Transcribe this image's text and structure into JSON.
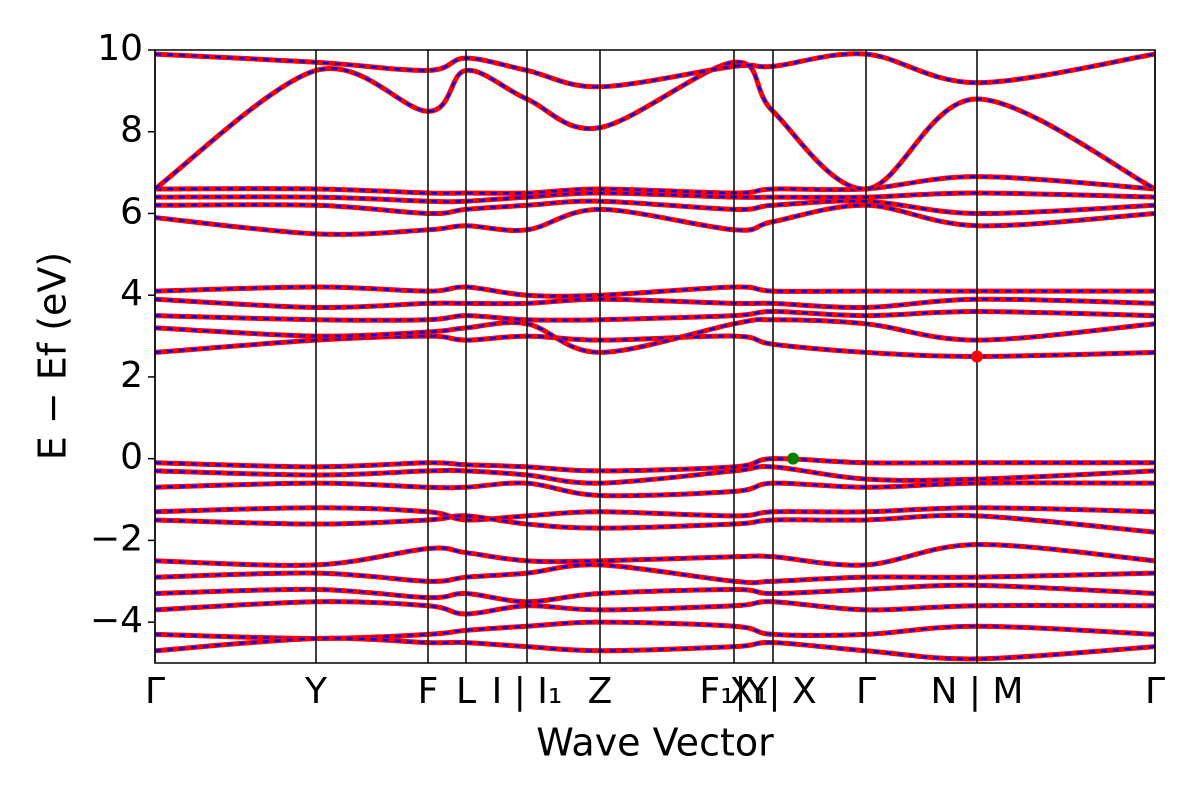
{
  "chart_data": {
    "type": "band",
    "x_label": "Wave Vector",
    "y_label": "E − Ef (eV)",
    "xlim": [
      0,
      1000
    ],
    "ylim": [
      -5,
      10
    ],
    "yticks": [
      {
        "value": -4,
        "label": "−4"
      },
      {
        "value": -2,
        "label": "−2"
      },
      0,
      2,
      4,
      6,
      8,
      10
    ],
    "xticks": [
      {
        "value": 0,
        "label": "Γ"
      },
      {
        "value": 161,
        "label": "Y"
      },
      {
        "value": 273,
        "label": "F"
      },
      {
        "value": 311,
        "label": "L"
      },
      {
        "value": 372,
        "label": "I | I₁"
      },
      {
        "value": 445,
        "label": "Z"
      },
      {
        "value": 579,
        "label": "F₁|Y"
      },
      {
        "value": 618,
        "label": "X₁| X"
      },
      {
        "value": 711,
        "label": "Γ"
      },
      {
        "value": 822,
        "label": "N | M"
      },
      {
        "value": 1000,
        "label": "Γ"
      }
    ],
    "color": "#ff0000",
    "dash_color": "#0000ff",
    "x": [
      0,
      161,
      273,
      311,
      372,
      445,
      579,
      618,
      711,
      822,
      1000
    ],
    "series": [
      {
        "values": [
          -0.1,
          -0.2,
          -0.1,
          -0.15,
          -0.2,
          -0.3,
          -0.2,
          0,
          -0.1,
          -0.1,
          -0.1
        ]
      },
      {
        "values": [
          -0.3,
          -0.4,
          -0.3,
          -0.3,
          -0.4,
          -0.6,
          -0.3,
          -0.2,
          -0.5,
          -0.5,
          -0.3
        ]
      },
      {
        "values": [
          -0.7,
          -0.6,
          -0.7,
          -0.7,
          -0.6,
          -0.9,
          -0.8,
          -0.6,
          -0.7,
          -0.6,
          -0.6
        ]
      },
      {
        "values": [
          -1.3,
          -1.2,
          -1.3,
          -1.5,
          -1.4,
          -1.3,
          -1.4,
          -1.3,
          -1.3,
          -1.2,
          -1.3
        ]
      },
      {
        "values": [
          -1.5,
          -1.6,
          -1.5,
          -1.4,
          -1.6,
          -1.7,
          -1.6,
          -1.5,
          -1.5,
          -1.4,
          -1.8
        ]
      },
      {
        "values": [
          -2.5,
          -2.6,
          -2.2,
          -2.3,
          -2.5,
          -2.5,
          -2.4,
          -2.4,
          -2.6,
          -2.1,
          -2.5
        ]
      },
      {
        "values": [
          -2.9,
          -2.8,
          -3.0,
          -2.9,
          -2.8,
          -2.6,
          -3.0,
          -3.0,
          -2.9,
          -2.9,
          -2.8
        ]
      },
      {
        "values": [
          -3.3,
          -3.2,
          -3.4,
          -3.3,
          -3.5,
          -3.3,
          -3.2,
          -3.3,
          -3.2,
          -3.1,
          -3.3
        ]
      },
      {
        "values": [
          -3.7,
          -3.5,
          -3.6,
          -3.8,
          -3.6,
          -3.7,
          -3.6,
          -3.5,
          -3.7,
          -3.6,
          -3.6
        ]
      },
      {
        "values": [
          -4.3,
          -4.4,
          -4.3,
          -4.2,
          -4.1,
          -4.0,
          -4.1,
          -4.3,
          -4.3,
          -4.1,
          -4.3
        ]
      },
      {
        "values": [
          -4.7,
          -4.4,
          -4.5,
          -4.5,
          -4.6,
          -4.7,
          -4.6,
          -4.5,
          -4.7,
          -4.9,
          -4.6
        ]
      },
      {
        "values": [
          2.6,
          2.9,
          3.0,
          2.9,
          3.0,
          2.9,
          3.0,
          2.8,
          2.6,
          2.5,
          2.6
        ]
      },
      {
        "values": [
          3.2,
          3.0,
          3.1,
          3.2,
          3.3,
          2.6,
          3.3,
          3.4,
          3.3,
          2.9,
          3.3
        ]
      },
      {
        "values": [
          3.5,
          3.4,
          3.4,
          3.5,
          3.4,
          3.4,
          3.5,
          3.6,
          3.5,
          3.6,
          3.5
        ]
      },
      {
        "values": [
          3.9,
          3.7,
          3.8,
          3.8,
          3.8,
          3.9,
          3.8,
          3.8,
          3.7,
          3.9,
          3.8
        ]
      },
      {
        "values": [
          4.1,
          4.2,
          4.1,
          4.2,
          4.0,
          4.0,
          4.2,
          4.1,
          4.1,
          4.1,
          4.1
        ]
      },
      {
        "values": [
          5.9,
          5.5,
          5.6,
          5.7,
          5.6,
          6.1,
          5.6,
          5.8,
          6.2,
          5.7,
          6.0
        ]
      },
      {
        "values": [
          6.2,
          6.2,
          6.0,
          6.1,
          6.2,
          6.3,
          6.1,
          6.2,
          6.3,
          6.0,
          6.2
        ]
      },
      {
        "values": [
          6.4,
          6.4,
          6.3,
          6.3,
          6.4,
          6.5,
          6.4,
          6.4,
          6.4,
          6.5,
          6.4
        ]
      },
      {
        "values": [
          6.6,
          6.6,
          6.5,
          6.5,
          6.5,
          6.6,
          6.5,
          6.6,
          6.6,
          6.9,
          6.6
        ]
      },
      {
        "values": [
          6.6,
          9.5,
          8.5,
          9.5,
          8.8,
          8.1,
          9.7,
          8.5,
          6.6,
          8.8,
          6.6
        ]
      },
      {
        "values": [
          9.9,
          9.7,
          9.5,
          9.8,
          9.5,
          9.1,
          9.6,
          9.6,
          9.9,
          9.2,
          9.9
        ]
      }
    ],
    "points": [
      {
        "x": 638,
        "y": 0,
        "color": "#008000"
      },
      {
        "x": 822,
        "y": 2.5,
        "color": "#ff0000"
      }
    ]
  }
}
